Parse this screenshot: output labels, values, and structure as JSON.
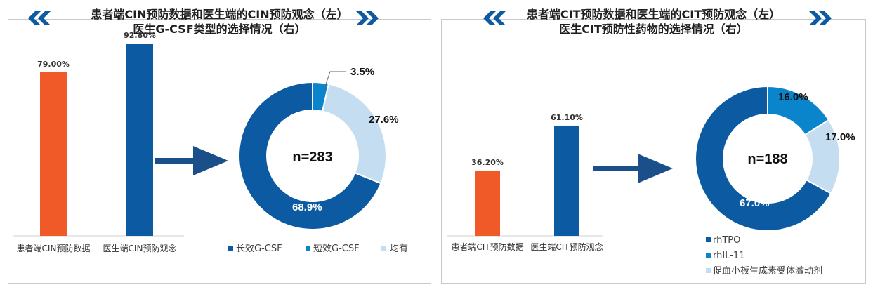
{
  "colors": {
    "orange": "#f05a28",
    "dark_blue": "#0b5aa2",
    "mid_blue": "#0a85cc",
    "light_blue": "#c5ddf1",
    "chevron": "#0b5aa2"
  },
  "left": {
    "title_line1": "患者端CIN预防数据和医生端的CIN预防观念（左）",
    "title_line2": "医生G-CSF类型的选择情况（右）"
  },
  "right": {
    "title_line1": "患者端CIT预防数据和医生端的CIT预防观念（左）",
    "title_line2": "医生CIT预防性药物的选择情况（右）"
  },
  "chart_data": [
    {
      "type": "bar",
      "categories": [
        "患者端CIN预防数据",
        "医生端CIN预防观念"
      ],
      "values": [
        79.0,
        92.8
      ],
      "value_labels": [
        "79.00%",
        "92.80%"
      ],
      "colors": [
        "#f05a28",
        "#0b5aa2"
      ],
      "ylim": [
        0,
        100
      ]
    },
    {
      "type": "pie",
      "donut": true,
      "center_label": "n=283",
      "slices": [
        {
          "name": "长效G-CSF",
          "value": 68.9,
          "label": "68.9%",
          "color": "#0b5aa2"
        },
        {
          "name": "短效G-CSF",
          "value": 3.5,
          "label": "3.5%",
          "color": "#0a85cc"
        },
        {
          "name": "均有",
          "value": 27.6,
          "label": "27.6%",
          "color": "#c5ddf1"
        }
      ],
      "legend": "bottom"
    },
    {
      "type": "bar",
      "categories": [
        "患者端CIT预防数据",
        "医生端CIT预防观念"
      ],
      "values": [
        36.2,
        61.1
      ],
      "value_labels": [
        "36.20%",
        "61.10%"
      ],
      "colors": [
        "#f05a28",
        "#0b5aa2"
      ],
      "ylim": [
        0,
        100
      ]
    },
    {
      "type": "pie",
      "donut": true,
      "center_label": "n=188",
      "slices": [
        {
          "name": "rhTPO",
          "value": 67.0,
          "label": "67.0%",
          "color": "#0b5aa2"
        },
        {
          "name": "rhIL-11",
          "value": 16.0,
          "label": "16.0%",
          "color": "#0a85cc"
        },
        {
          "name": "促血小板生成素受体激动剂",
          "value": 17.0,
          "label": "17.0%",
          "color": "#c5ddf1"
        }
      ],
      "legend": "bottom"
    }
  ]
}
